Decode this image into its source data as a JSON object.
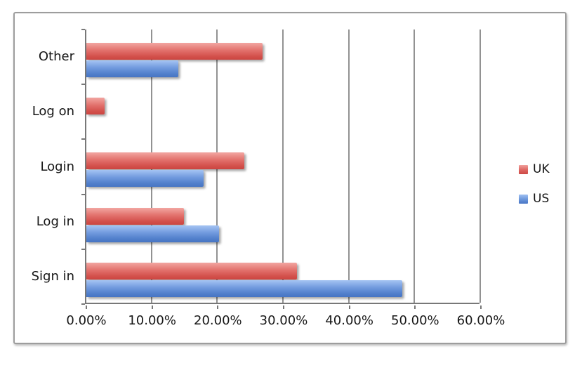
{
  "chart_data": {
    "type": "bar",
    "orientation": "horizontal",
    "title": "",
    "xlabel": "",
    "ylabel": "",
    "categories": [
      "Other",
      "Log on",
      "Login",
      "Log in",
      "Sign in"
    ],
    "series": [
      {
        "name": "UK",
        "values": [
          26.8,
          2.8,
          24.0,
          14.8,
          32.0
        ],
        "color": "#d4524d",
        "color_light": "#f2a6a2"
      },
      {
        "name": "US",
        "values": [
          14.0,
          0.0,
          17.8,
          20.2,
          48.0
        ],
        "color": "#4674c3",
        "color_light": "#a5c4f3"
      }
    ],
    "x_ticks": [
      "0.00%",
      "10.00%",
      "20.00%",
      "30.00%",
      "40.00%",
      "50.00%",
      "60.00%"
    ],
    "x_tick_values": [
      0,
      10,
      20,
      30,
      40,
      50,
      60
    ],
    "xlim": [
      0,
      60
    ],
    "grid": "vertical",
    "legend_position": "right",
    "legend": [
      "UK",
      "US"
    ]
  }
}
